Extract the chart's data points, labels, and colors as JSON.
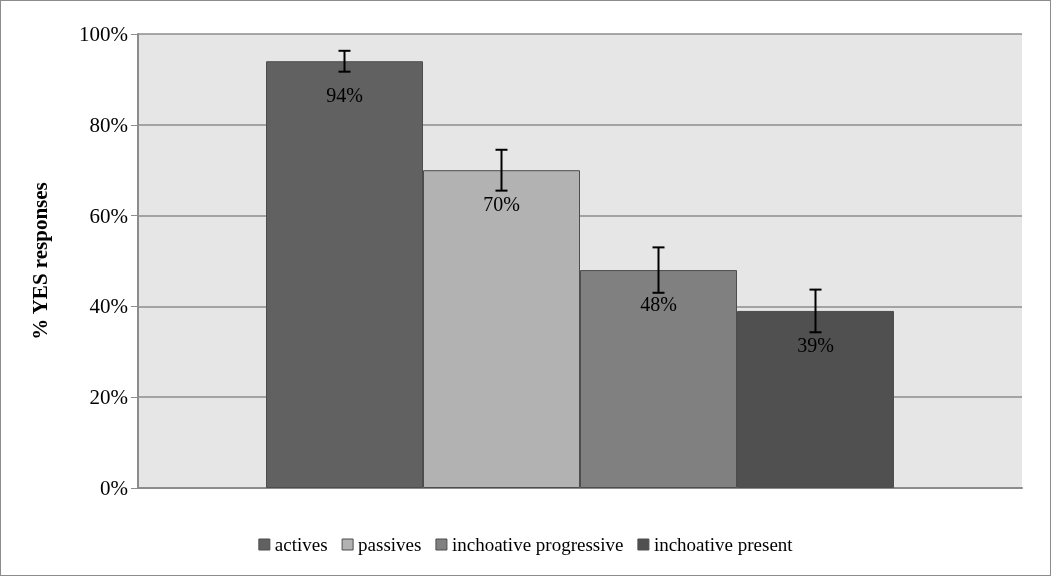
{
  "chart_data": {
    "type": "bar",
    "ylabel": "% YES responses",
    "categories": [
      null
    ],
    "series": [
      {
        "name": "actives",
        "color": "#616161",
        "values": [
          94
        ],
        "errors": [
          2.3
        ],
        "value_labels": [
          "94%"
        ]
      },
      {
        "name": "passives",
        "color": "#b2b2b2",
        "values": [
          70
        ],
        "errors": [
          4.5
        ],
        "value_labels": [
          "70%"
        ]
      },
      {
        "name": "inchoative progressive",
        "color": "#808080",
        "values": [
          48
        ],
        "errors": [
          5
        ],
        "value_labels": [
          "48%"
        ]
      },
      {
        "name": "inchoative present",
        "color": "#505050",
        "values": [
          39
        ],
        "errors": [
          4.7
        ],
        "value_labels": [
          "39%"
        ]
      }
    ],
    "ylim": [
      0,
      100
    ],
    "yticks": [
      {
        "value": 0,
        "label": "0%"
      },
      {
        "value": 20,
        "label": "20%"
      },
      {
        "value": 40,
        "label": "40%"
      },
      {
        "value": 60,
        "label": "60%"
      },
      {
        "value": 80,
        "label": "80%"
      },
      {
        "value": 100,
        "label": "100%"
      }
    ],
    "grid": "y",
    "legend": "bottom"
  }
}
